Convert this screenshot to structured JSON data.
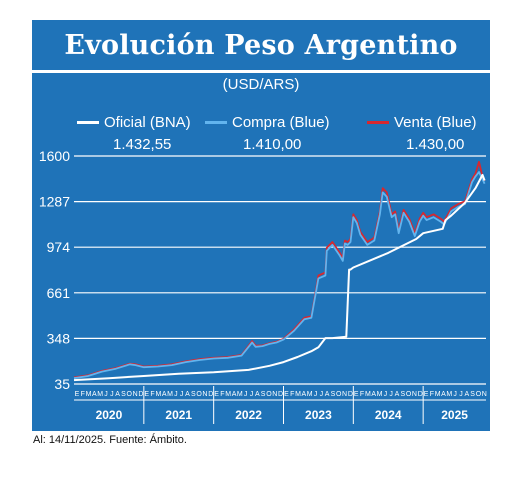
{
  "title": "Evolución Peso Argentino",
  "subtitle": "(USD/ARS)",
  "legend": [
    {
      "label": "Oficial (BNA)",
      "value": "1.432,55",
      "color": "#ffffff"
    },
    {
      "label": "Compra (Blue)",
      "value": "1.410,00",
      "color": "#62b4ee"
    },
    {
      "label": "Venta (Blue)",
      "value": "1.430,00",
      "color": "#d7282f"
    }
  ],
  "footer": "Al: 14/11/2025. Fuente: Ámbito.",
  "colors": {
    "background": "#1f73b8",
    "grid": "#ffffff",
    "oficial": "#ffffff",
    "compra": "#62b4ee",
    "venta": "#d7282f"
  },
  "chart_data": {
    "type": "line",
    "y_ticks": [
      35,
      348,
      661,
      974,
      1287,
      1600
    ],
    "ylim": [
      35,
      1600
    ],
    "x_range": [
      "2020-01",
      "2025-11"
    ],
    "years": [
      "2020",
      "2021",
      "2022",
      "2023",
      "2024",
      "2025"
    ],
    "month_letters": [
      "E",
      "F",
      "M",
      "A",
      "M",
      "J",
      "J",
      "A",
      "S",
      "O",
      "N",
      "D"
    ],
    "grid": true,
    "legend_position": "top",
    "series": [
      {
        "name": "Oficial (BNA)",
        "x": [
          2020.0,
          2020.5,
          2021.0,
          2021.5,
          2022.0,
          2022.5,
          2022.8,
          2023.0,
          2023.2,
          2023.4,
          2023.5,
          2023.6,
          2023.63,
          2023.7,
          2023.9,
          2023.94,
          2023.96,
          2024.0,
          2024.5,
          2024.9,
          2025.0,
          2025.28,
          2025.32,
          2025.4,
          2025.6,
          2025.75,
          2025.85,
          2025.88
        ],
        "values": [
          62,
          75,
          90,
          105,
          115,
          132,
          160,
          185,
          220,
          260,
          287,
          350,
          350,
          350,
          360,
          820,
          820,
          835,
          935,
          1030,
          1070,
          1100,
          1160,
          1190,
          1280,
          1380,
          1470,
          1432
        ]
      },
      {
        "name": "Compra (Blue)",
        "x": [
          2020.0,
          2020.2,
          2020.4,
          2020.6,
          2020.8,
          2020.88,
          2021.0,
          2021.2,
          2021.4,
          2021.6,
          2021.8,
          2022.0,
          2022.2,
          2022.4,
          2022.55,
          2022.6,
          2022.7,
          2022.8,
          2022.9,
          2023.0,
          2023.15,
          2023.3,
          2023.4,
          2023.5,
          2023.6,
          2023.62,
          2023.7,
          2023.8,
          2023.85,
          2023.88,
          2023.92,
          2023.96,
          2024.0,
          2024.05,
          2024.1,
          2024.2,
          2024.3,
          2024.38,
          2024.42,
          2024.48,
          2024.55,
          2024.6,
          2024.65,
          2024.72,
          2024.8,
          2024.88,
          2024.95,
          2025.0,
          2025.05,
          2025.15,
          2025.25,
          2025.3,
          2025.4,
          2025.5,
          2025.6,
          2025.7,
          2025.75,
          2025.8,
          2025.85,
          2025.88
        ],
        "values": [
          75,
          90,
          120,
          140,
          170,
          165,
          150,
          155,
          165,
          185,
          200,
          210,
          215,
          230,
          320,
          290,
          295,
          310,
          320,
          340,
          400,
          480,
          490,
          760,
          780,
          950,
          990,
          920,
          880,
          1000,
          990,
          1010,
          1180,
          1140,
          1060,
          990,
          1020,
          1200,
          1350,
          1320,
          1180,
          1200,
          1070,
          1210,
          1150,
          1050,
          1150,
          1190,
          1160,
          1180,
          1150,
          1130,
          1220,
          1250,
          1270,
          1420,
          1460,
          1490,
          1440,
          1410
        ]
      },
      {
        "name": "Venta (Blue)",
        "x": [
          2020.0,
          2020.2,
          2020.4,
          2020.6,
          2020.8,
          2020.88,
          2021.0,
          2021.2,
          2021.4,
          2021.6,
          2021.8,
          2022.0,
          2022.2,
          2022.4,
          2022.55,
          2022.6,
          2022.7,
          2022.8,
          2022.9,
          2023.0,
          2023.15,
          2023.3,
          2023.4,
          2023.5,
          2023.6,
          2023.62,
          2023.7,
          2023.8,
          2023.85,
          2023.88,
          2023.92,
          2023.96,
          2024.0,
          2024.05,
          2024.1,
          2024.2,
          2024.3,
          2024.38,
          2024.42,
          2024.48,
          2024.55,
          2024.6,
          2024.65,
          2024.72,
          2024.8,
          2024.88,
          2024.95,
          2025.0,
          2025.05,
          2025.15,
          2025.25,
          2025.3,
          2025.4,
          2025.5,
          2025.6,
          2025.7,
          2025.75,
          2025.8,
          2025.85,
          2025.88
        ],
        "values": [
          80,
          95,
          125,
          145,
          175,
          170,
          155,
          160,
          170,
          190,
          205,
          215,
          220,
          235,
          330,
          298,
          300,
          315,
          325,
          345,
          410,
          490,
          500,
          780,
          800,
          970,
          1010,
          940,
          900,
          1020,
          1010,
          1030,
          1200,
          1160,
          1080,
          1010,
          1040,
          1220,
          1380,
          1350,
          1200,
          1220,
          1090,
          1230,
          1170,
          1070,
          1170,
          1210,
          1180,
          1200,
          1170,
          1150,
          1240,
          1270,
          1290,
          1440,
          1480,
          1560,
          1460,
          1430
        ]
      }
    ]
  }
}
